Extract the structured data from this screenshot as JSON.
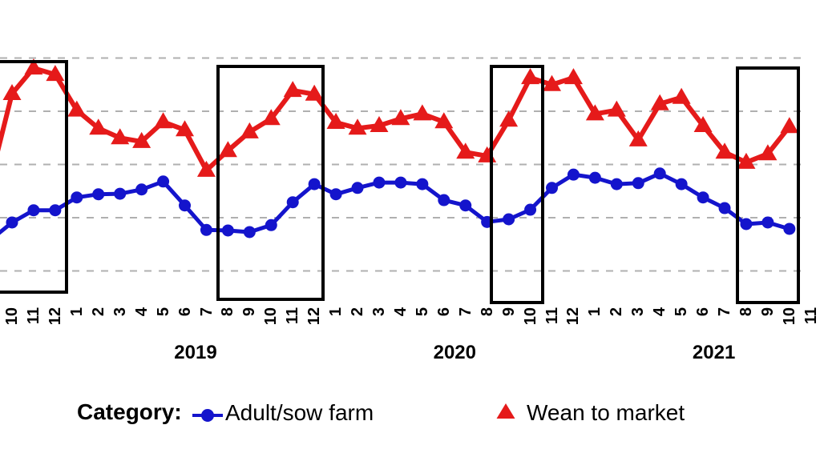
{
  "chart_data": {
    "type": "line",
    "title": "",
    "xlabel": "",
    "ylabel": "",
    "y_axis": {
      "tick_labels_visible": false,
      "note_unit": "gridline units (y-axis cropped out of frame; 0 = lowest visible dashed gridline, 4 = top dashed gridline)",
      "gridline_values": [
        0,
        1,
        2,
        3,
        4
      ],
      "grid_style": "dashed"
    },
    "x_month_labels": [
      "10",
      "11",
      "12",
      "1",
      "2",
      "3",
      "4",
      "5",
      "6",
      "7",
      "8",
      "9",
      "10",
      "11",
      "12",
      "1",
      "2",
      "3",
      "4",
      "5",
      "6",
      "7",
      "8",
      "9",
      "10",
      "11",
      "12",
      "1",
      "2",
      "3",
      "4",
      "5",
      "6",
      "7",
      "8",
      "9",
      "10",
      "11"
    ],
    "x_year_labels": [
      {
        "label": "2019",
        "month_index_center": 8.5
      },
      {
        "label": "2020",
        "month_index_center": 20.5
      },
      {
        "label": "2021",
        "month_index_center": 32.5
      }
    ],
    "x_first_data_month": "2018-10",
    "x_last_data_month": "2021-10",
    "series": [
      {
        "name": "Adult/sow farm",
        "color": "#1414CC",
        "marker": "circle",
        "line_width": 5,
        "lead_in_value": 0.58,
        "values": [
          0.91,
          1.14,
          1.14,
          1.38,
          1.44,
          1.45,
          1.53,
          1.68,
          1.23,
          0.77,
          0.76,
          0.73,
          0.86,
          1.29,
          1.63,
          1.44,
          1.56,
          1.66,
          1.66,
          1.63,
          1.33,
          1.23,
          0.92,
          0.97,
          1.15,
          1.56,
          1.81,
          1.75,
          1.63,
          1.65,
          1.83,
          1.63,
          1.38,
          1.18,
          0.88,
          0.91,
          0.79
        ]
      },
      {
        "name": "Wean to market",
        "color": "#E51A1A",
        "marker": "triangle-up",
        "line_width": 6,
        "lead_in_value": 1.71,
        "values": [
          3.33,
          3.81,
          3.69,
          3.02,
          2.68,
          2.5,
          2.43,
          2.8,
          2.65,
          1.89,
          2.26,
          2.61,
          2.86,
          3.39,
          3.32,
          2.79,
          2.68,
          2.73,
          2.86,
          2.95,
          2.8,
          2.23,
          2.16,
          2.83,
          3.63,
          3.5,
          3.63,
          2.95,
          3.02,
          2.46,
          3.14,
          3.26,
          2.73,
          2.23,
          2.04,
          2.2,
          2.71
        ]
      }
    ],
    "highlight_boxes": [
      {
        "x1": -28,
        "y1": 77,
        "x2": 83,
        "y2": 365
      },
      {
        "x1": 272,
        "y1": 83,
        "x2": 403,
        "y2": 374
      },
      {
        "x1": 613,
        "y1": 83,
        "x2": 677,
        "y2": 378
      },
      {
        "x1": 920,
        "y1": 85,
        "x2": 996,
        "y2": 378
      }
    ],
    "gridline_color": "#b0b0b0",
    "box_color": "#000000"
  },
  "legend": {
    "title": "Category:",
    "items": [
      {
        "label": "Adult/sow farm",
        "color": "#1414CC",
        "marker": "circle"
      },
      {
        "label": "Wean to market",
        "color": "#E51A1A",
        "marker": "triangle-up"
      }
    ]
  }
}
